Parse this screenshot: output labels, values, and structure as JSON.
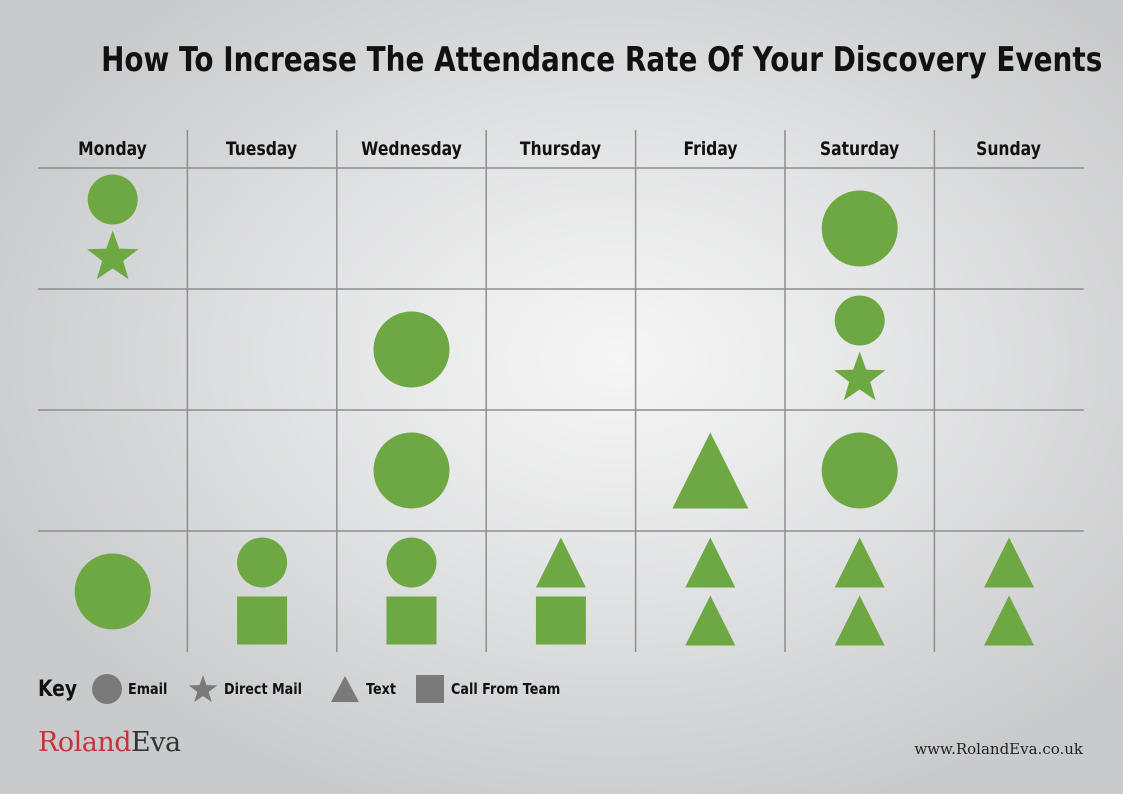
{
  "title": "How To Increase The Attendance Rate Of Your Discovery Events",
  "days": [
    "Monday",
    "Tuesday",
    "Wednesday",
    "Thursday",
    "Friday",
    "Saturday",
    "Sunday"
  ],
  "colors": {
    "shape": "#6ea842",
    "key_shape": "#7a7a7a",
    "grid_line": "#8e8e8e"
  },
  "schedule": [
    [
      "email-sm,star",
      "",
      "",
      "",
      "",
      "email-lg",
      ""
    ],
    [
      "",
      "",
      "email-lg",
      "",
      "",
      "email-sm,star",
      ""
    ],
    [
      "",
      "",
      "email-lg",
      "",
      "text-lg",
      "email-lg",
      ""
    ],
    [
      "email-lg",
      "email-sm,call",
      "email-sm,call",
      "text,call",
      "text,text",
      "text,text",
      "text,text"
    ]
  ],
  "key": {
    "title": "Key",
    "items": [
      {
        "icon": "circle-icon",
        "label": "Email"
      },
      {
        "icon": "star-icon",
        "label": "Direct Mail"
      },
      {
        "icon": "triangle-icon",
        "label": "Text"
      },
      {
        "icon": "square-icon",
        "label": "Call From Team"
      }
    ]
  },
  "brand": {
    "part1": "Roland",
    "part2": "Eva",
    "url": "www.RolandEva.co.uk"
  }
}
